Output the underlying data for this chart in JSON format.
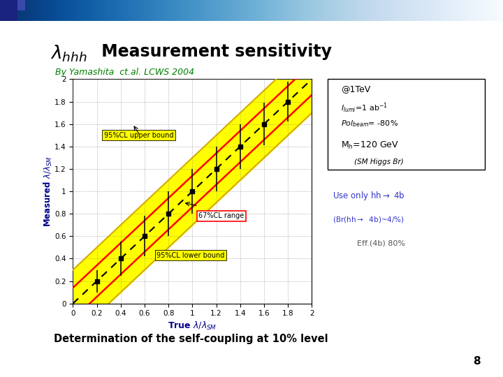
{
  "title_main": " Measurement sensitivity",
  "subtitle": "By Yamashita  ct.al. LCWS 2004",
  "x_data": [
    0.0,
    0.2,
    0.4,
    0.6,
    0.8,
    1.0,
    1.2,
    1.4,
    1.6,
    1.8,
    2.0
  ],
  "diagonal": [
    0.0,
    0.2,
    0.4,
    0.6,
    0.8,
    1.0,
    1.2,
    1.4,
    1.6,
    1.8,
    2.0
  ],
  "red_upper": [
    0.14,
    0.34,
    0.54,
    0.74,
    0.94,
    1.14,
    1.34,
    1.54,
    1.74,
    1.94,
    2.14
  ],
  "red_lower": [
    -0.14,
    0.06,
    0.26,
    0.46,
    0.66,
    0.86,
    1.06,
    1.26,
    1.46,
    1.66,
    1.86
  ],
  "yellow_upper": [
    0.3,
    0.5,
    0.7,
    0.9,
    1.1,
    1.3,
    1.5,
    1.7,
    1.9,
    2.1,
    2.3
  ],
  "yellow_lower": [
    -0.3,
    -0.1,
    0.1,
    0.3,
    0.5,
    0.7,
    0.9,
    1.1,
    1.3,
    1.5,
    1.7
  ],
  "dot_x": [
    0.2,
    0.4,
    0.6,
    0.8,
    1.0,
    1.2,
    1.4,
    1.6,
    1.8
  ],
  "dot_y": [
    0.2,
    0.4,
    0.6,
    0.8,
    1.0,
    1.2,
    1.4,
    1.6,
    1.8
  ],
  "err_low": [
    0.1,
    0.25,
    0.42,
    0.6,
    0.8,
    1.0,
    1.2,
    1.41,
    1.62
  ],
  "err_high": [
    0.3,
    0.55,
    0.78,
    1.0,
    1.2,
    1.4,
    1.6,
    1.79,
    1.98
  ],
  "slide_bg": "#ffffff",
  "bottom_text": "Determination of the self-coupling at 10% level",
  "page_number": "8",
  "label_95_upper": "95%CL upper bound",
  "label_67": "67%CL range",
  "label_95_lower": "95%CL lower bound",
  "xlim": [
    0,
    2
  ],
  "ylim": [
    0,
    2
  ],
  "xticks": [
    0,
    0.2,
    0.4,
    0.6,
    0.8,
    1.0,
    1.2,
    1.4,
    1.6,
    1.8,
    2.0
  ],
  "yticks": [
    0,
    0.2,
    0.4,
    0.6,
    0.8,
    1.0,
    1.2,
    1.4,
    1.6,
    1.8,
    2.0
  ]
}
